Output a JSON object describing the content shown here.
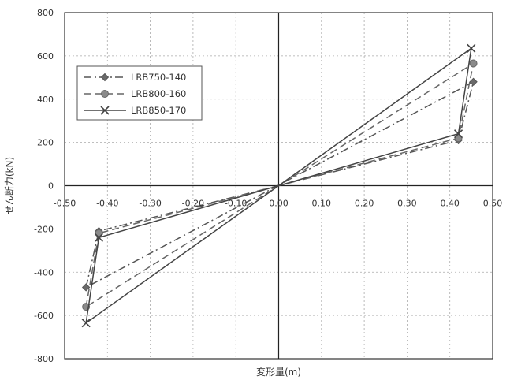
{
  "chart_data": {
    "type": "line",
    "title": "",
    "xlabel": "変形量(m)",
    "ylabel": "せん断力(kN)",
    "xlim": [
      -0.5,
      0.5
    ],
    "ylim": [
      -800,
      800
    ],
    "xticks": [
      "-0.50",
      "-0.40",
      "-0.30",
      "-0.20",
      "-0.10",
      "0.00",
      "0.10",
      "0.20",
      "0.30",
      "0.40",
      "0.50"
    ],
    "yticks": [
      "800",
      "600",
      "400",
      "200",
      "0",
      "-200",
      "-400",
      "-600",
      "-800"
    ],
    "grid": true,
    "legend_position": "upper-left",
    "series": [
      {
        "name": "LRB750-140",
        "marker": "diamond",
        "dash": "dash-dot",
        "color": "#555555",
        "x": [
          -0.45,
          -0.42,
          0.42,
          0.455,
          -0.45
        ],
        "y": [
          -470,
          -210,
          210,
          480,
          -470
        ]
      },
      {
        "name": "LRB800-160",
        "marker": "circle",
        "dash": "dashed",
        "color": "#666666",
        "x": [
          -0.45,
          -0.42,
          0.42,
          0.455,
          -0.45
        ],
        "y": [
          -560,
          -220,
          220,
          565,
          -560
        ]
      },
      {
        "name": "LRB850-170",
        "marker": "x",
        "dash": "solid",
        "color": "#444444",
        "x": [
          -0.45,
          -0.42,
          0.42,
          0.45,
          -0.45
        ],
        "y": [
          -635,
          -240,
          240,
          635,
          -635
        ]
      }
    ]
  }
}
